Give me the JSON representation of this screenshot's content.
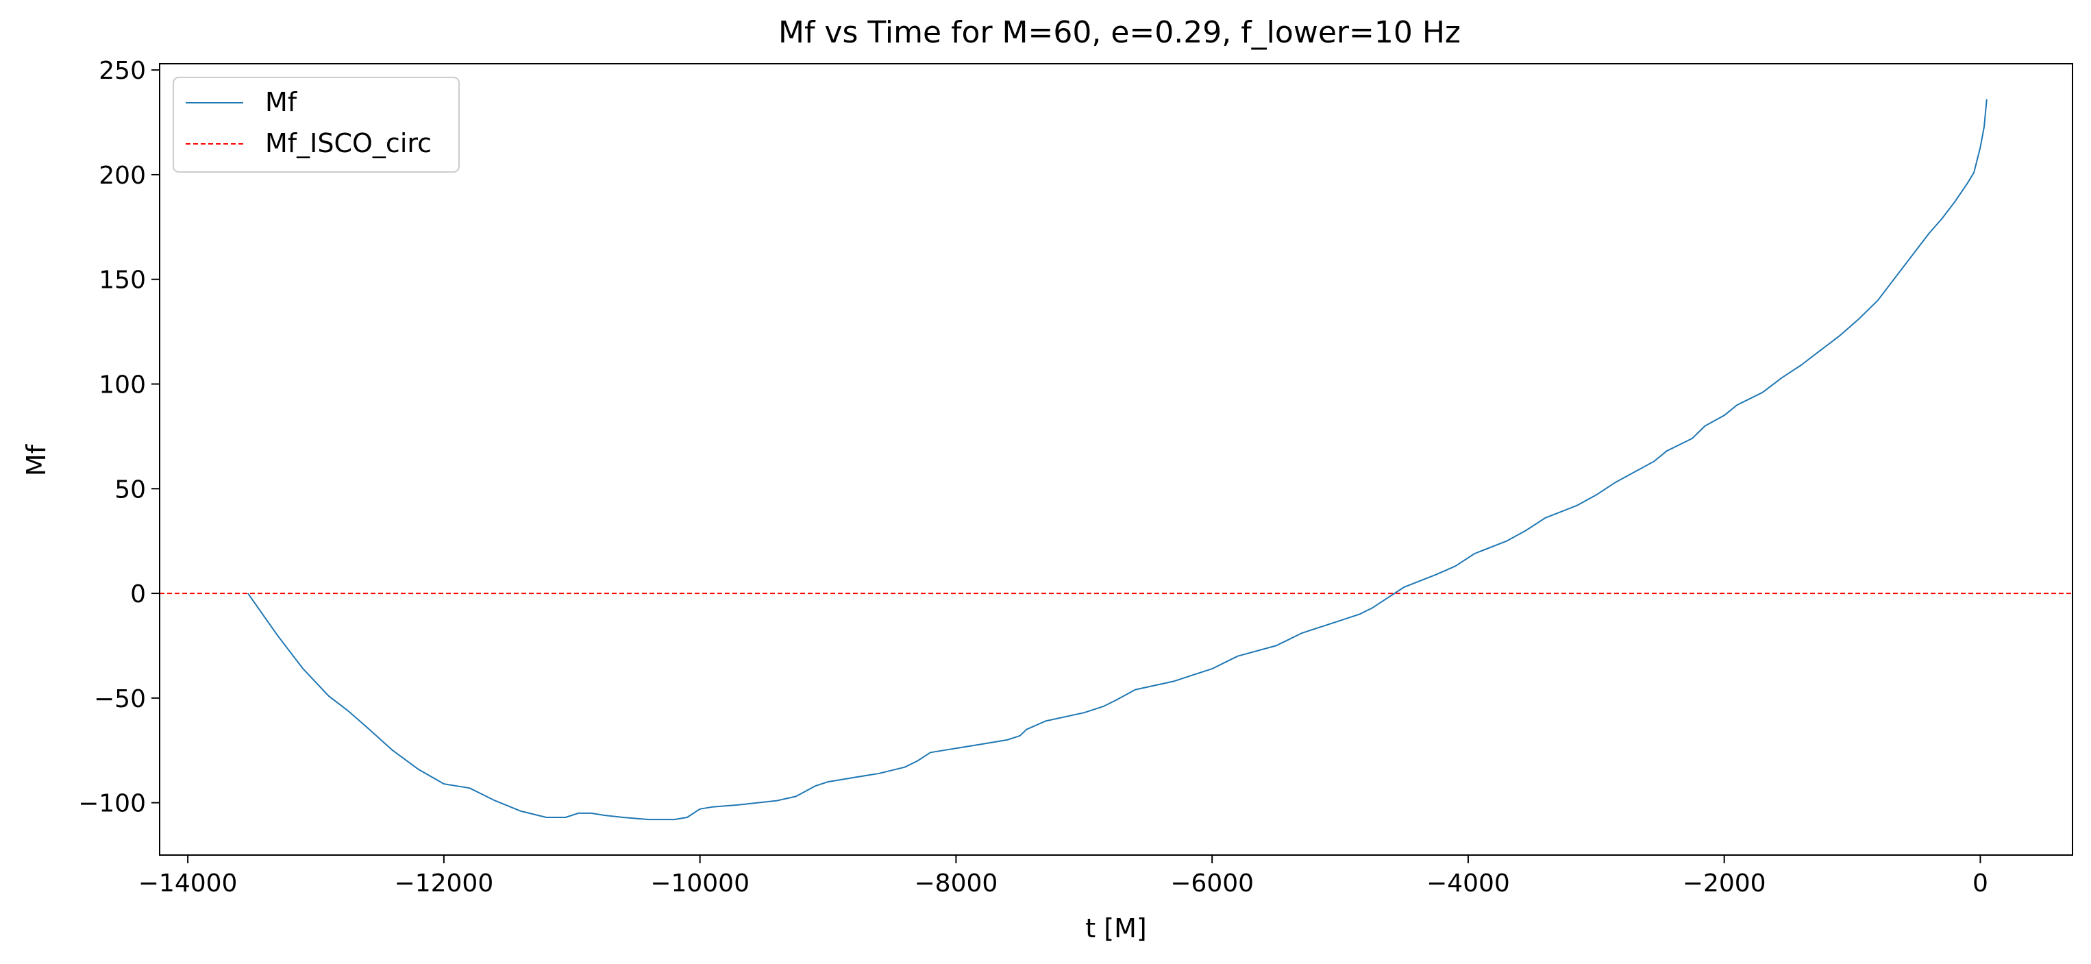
{
  "chart_data": {
    "type": "line",
    "title": "Mf vs Time for M=60, e=0.29, f_lower=10 Hz",
    "xlabel": "t [M]",
    "ylabel": "Mf",
    "xlim": [
      -14220,
      720
    ],
    "ylim": [
      -125,
      253
    ],
    "xticks": [
      -14000,
      -12000,
      -10000,
      -8000,
      -6000,
      -4000,
      -2000,
      0
    ],
    "xtick_labels": [
      "−14000",
      "−12000",
      "−10000",
      "−8000",
      "−6000",
      "−4000",
      "−2000",
      "0"
    ],
    "yticks": [
      -100,
      -50,
      0,
      50,
      100,
      150,
      200,
      250
    ],
    "ytick_labels": [
      "−100",
      "−50",
      "0",
      "50",
      "100",
      "150",
      "200",
      "250"
    ],
    "grid": false,
    "legend_position": "top-left",
    "series": [
      {
        "name": "Mf",
        "color": "#1f77b4",
        "style": "solid",
        "x": [
          -13530,
          -13300,
          -13100,
          -12900,
          -12750,
          -12600,
          -12400,
          -12200,
          -12000,
          -11900,
          -11800,
          -11700,
          -11600,
          -11400,
          -11200,
          -11050,
          -10950,
          -10850,
          -10750,
          -10600,
          -10400,
          -10200,
          -10100,
          -10000,
          -9900,
          -9700,
          -9400,
          -9250,
          -9100,
          -9000,
          -8800,
          -8600,
          -8400,
          -8300,
          -8200,
          -8000,
          -7800,
          -7600,
          -7500,
          -7450,
          -7300,
          -7000,
          -6850,
          -6750,
          -6600,
          -6300,
          -6150,
          -6000,
          -5800,
          -5500,
          -5400,
          -5300,
          -5000,
          -4850,
          -4750,
          -4650,
          -4500,
          -4250,
          -4100,
          -3950,
          -3700,
          -3550,
          -3400,
          -3150,
          -3000,
          -2850,
          -2700,
          -2550,
          -2450,
          -2250,
          -2150,
          -2000,
          -1900,
          -1700,
          -1550,
          -1400,
          -1250,
          -1100,
          -950,
          -800,
          -700,
          -600,
          -500,
          -400,
          -300,
          -200,
          -100,
          -50,
          0,
          30,
          50
        ],
        "y": [
          0,
          -20,
          -36,
          -49,
          -56,
          -64,
          -75,
          -84,
          -91,
          -92,
          -93,
          -96,
          -99,
          -104,
          -107,
          -107,
          -105,
          -105,
          -106,
          -107,
          -108,
          -108,
          -107,
          -103,
          -102,
          -101,
          -99,
          -97,
          -92,
          -90,
          -88,
          -86,
          -83,
          -80,
          -76,
          -74,
          -72,
          -70,
          -68,
          -65,
          -61,
          -57,
          -54,
          -51,
          -46,
          -42,
          -39,
          -36,
          -30,
          -25,
          -22,
          -19,
          -13,
          -10,
          -7,
          -3,
          3,
          9,
          13,
          19,
          25,
          30,
          36,
          42,
          47,
          53,
          58,
          63,
          68,
          74,
          80,
          85,
          90,
          96,
          103,
          109,
          116,
          123,
          131,
          140,
          148,
          156,
          164,
          172,
          179,
          187,
          196,
          201,
          213,
          223,
          236
        ]
      },
      {
        "name": "Mf_ISCO_circ",
        "color": "#ff0000",
        "style": "dashed",
        "x": [
          -14220,
          720
        ],
        "y": [
          0,
          0
        ]
      }
    ]
  }
}
